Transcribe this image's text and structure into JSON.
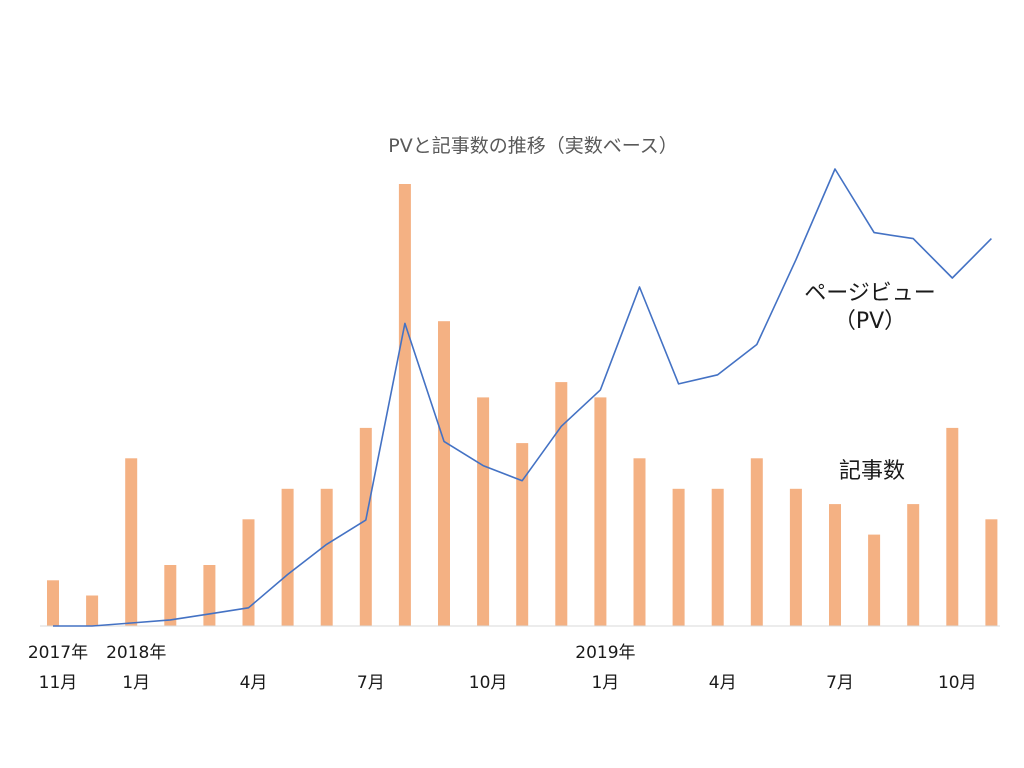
{
  "chart_data": {
    "type": "bar",
    "title": "PVと記事数の推移（実数ベース）",
    "categories": [
      "2017-11",
      "2017-12",
      "2018-01",
      "2018-02",
      "2018-03",
      "2018-04",
      "2018-05",
      "2018-06",
      "2018-07",
      "2018-08",
      "2018-09",
      "2018-10",
      "2018-11",
      "2018-12",
      "2019-01",
      "2019-02",
      "2019-03",
      "2019-04",
      "2019-05",
      "2019-06",
      "2019-07",
      "2019-08",
      "2019-09",
      "2019-10",
      "2019-11"
    ],
    "series": [
      {
        "name": "記事数",
        "type": "bar",
        "color": "#F4B183",
        "values": [
          3,
          2,
          11,
          4,
          4,
          7,
          9,
          9,
          13,
          29,
          20,
          15,
          12,
          16,
          15,
          11,
          9,
          9,
          11,
          9,
          8,
          6,
          8,
          13,
          7
        ]
      },
      {
        "name": "ページビュー（PV）",
        "type": "line",
        "color": "#4472C4",
        "values": [
          0,
          0,
          0.1,
          0.2,
          0.4,
          0.6,
          1.7,
          2.7,
          3.5,
          10.0,
          6.1,
          5.3,
          4.8,
          6.6,
          7.8,
          11.2,
          8.0,
          8.3,
          9.3,
          12.1,
          15.1,
          13.0,
          12.8,
          11.5,
          12.8
        ]
      }
    ],
    "annotations": {
      "pv_line1": "ページビュー",
      "pv_line2": "（PV）",
      "articles": "記事数"
    },
    "x_tick_labels": [
      {
        "index": 0,
        "year": "2017年",
        "month": "11月"
      },
      {
        "index": 2,
        "year": "2018年",
        "month": "1月"
      },
      {
        "index": 5,
        "year": "",
        "month": "4月"
      },
      {
        "index": 8,
        "year": "",
        "month": "7月"
      },
      {
        "index": 11,
        "year": "",
        "month": "10月"
      },
      {
        "index": 14,
        "year": "2019年",
        "month": "1月"
      },
      {
        "index": 17,
        "year": "",
        "month": "4月"
      },
      {
        "index": 20,
        "year": "",
        "month": "7月"
      },
      {
        "index": 23,
        "year": "",
        "month": "10月"
      }
    ],
    "ylim_bars": [
      0,
      29
    ],
    "ylim_line": [
      0,
      15.1
    ],
    "grid": false,
    "legend": "none"
  }
}
